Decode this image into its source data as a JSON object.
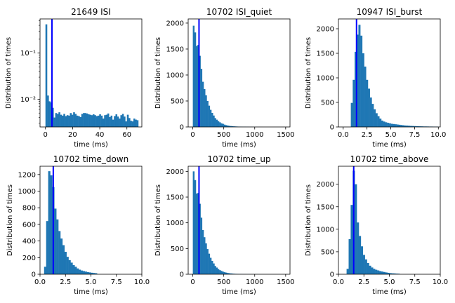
{
  "figure": {
    "colors": {
      "bar": "#1f77b4",
      "marker_line": "#0000ff",
      "axes": "#000000"
    }
  },
  "chart_data": [
    {
      "type": "bar",
      "title": "21649 ISI",
      "xlabel": "time (ms)",
      "ylabel": "Distribution of times",
      "yscale": "log",
      "xlim": [
        -4,
        71
      ],
      "ylim": [
        0.0025,
        0.55
      ],
      "xticks": [
        0,
        20,
        40,
        60
      ],
      "xtick_labels": [
        "0",
        "20",
        "40",
        "60"
      ],
      "yticks": [
        0.01,
        0.1
      ],
      "ytick_labels": [
        "10⁻²",
        "10⁻¹"
      ],
      "bin_start": 0,
      "bin_width": 1.2,
      "values": [
        0.42,
        0.012,
        0.009,
        0.0085,
        0.0065,
        0.004,
        0.005,
        0.0048,
        0.0052,
        0.0046,
        0.0044,
        0.0048,
        0.0043,
        0.0045,
        0.0044,
        0.005,
        0.0046,
        0.0052,
        0.0048,
        0.0044,
        0.0043,
        0.0041,
        0.0048,
        0.005,
        0.005,
        0.0049,
        0.0047,
        0.0046,
        0.0045,
        0.0047,
        0.0045,
        0.0043,
        0.0044,
        0.0047,
        0.0044,
        0.0038,
        0.0045,
        0.0046,
        0.0049,
        0.0041,
        0.0044,
        0.0036,
        0.0043,
        0.0047,
        0.0042,
        0.0038,
        0.0045,
        0.0048,
        0.0042,
        0.0033,
        0.0046,
        0.0039,
        0.0034,
        0.0033,
        0.0038,
        0.0036,
        0.0035
      ],
      "vline": 4.8
    },
    {
      "type": "bar",
      "title": "10702 ISI_quiet",
      "xlabel": "time (ms)",
      "ylabel": "Distribution of times",
      "yscale": "linear",
      "xlim": [
        -75,
        1570
      ],
      "ylim": [
        0,
        2080
      ],
      "xticks": [
        0,
        500,
        1000,
        1500
      ],
      "xtick_labels": [
        "0",
        "500",
        "1000",
        "1500"
      ],
      "yticks": [
        0,
        500,
        1000,
        1500,
        2000
      ],
      "ytick_labels": [
        "0",
        "500",
        "1000",
        "1500",
        "2000"
      ],
      "bin_start": 0,
      "bin_width": 25,
      "values": [
        1950,
        1820,
        1560,
        1580,
        1370,
        1120,
        870,
        730,
        610,
        500,
        410,
        330,
        270,
        220,
        170,
        140,
        110,
        90,
        70,
        60,
        45,
        35,
        28,
        22,
        18,
        15,
        12,
        10,
        8,
        7,
        6,
        5,
        4,
        4,
        3,
        3,
        2,
        2,
        2,
        1,
        1,
        1,
        1,
        1,
        1,
        0,
        0,
        0,
        0,
        0,
        0,
        0,
        0,
        0,
        0,
        0,
        0,
        0,
        0,
        0
      ],
      "vline": 100
    },
    {
      "type": "bar",
      "title": "10947 ISI_burst",
      "xlabel": "time (ms)",
      "ylabel": "Distribution of times",
      "yscale": "linear",
      "xlim": [
        -0.5,
        10.2
      ],
      "ylim": [
        0,
        2200
      ],
      "xticks": [
        0.0,
        2.5,
        5.0,
        7.5,
        10.0
      ],
      "xtick_labels": [
        "0.0",
        "2.5",
        "5.0",
        "7.5",
        "10.0"
      ],
      "yticks": [
        0,
        500,
        1000,
        1500,
        2000
      ],
      "ytick_labels": [
        "0",
        "500",
        "1000",
        "1500",
        "2000"
      ],
      "bin_start": 0.4,
      "bin_width": 0.2,
      "values": [
        0,
        0,
        490,
        960,
        1530,
        1880,
        2080,
        1860,
        1500,
        1230,
        960,
        780,
        600,
        470,
        360,
        280,
        220,
        170,
        130,
        110,
        95,
        85,
        75,
        65,
        60,
        55,
        50,
        45,
        40,
        35,
        30,
        28,
        25,
        22,
        20,
        18,
        16,
        14,
        13,
        12,
        10,
        10,
        9,
        8,
        8,
        7,
        6,
        6
      ],
      "vline": 1.4
    },
    {
      "type": "bar",
      "title": "10702 time_down",
      "xlabel": "time (ms)",
      "ylabel": "Distribution of times",
      "yscale": "linear",
      "xlim": [
        0,
        10
      ],
      "ylim": [
        0,
        1300
      ],
      "xticks": [
        0.0,
        2.5,
        5.0,
        7.5,
        10.0
      ],
      "xtick_labels": [
        "0.0",
        "2.5",
        "5.0",
        "7.5",
        "10.0"
      ],
      "yticks": [
        0,
        200,
        400,
        600,
        800,
        1000,
        1200
      ],
      "ytick_labels": [
        "0",
        "200",
        "400",
        "600",
        "800",
        "1000",
        "1200"
      ],
      "bin_start": 0.4,
      "bin_width": 0.2,
      "values": [
        90,
        640,
        1240,
        1190,
        1050,
        790,
        660,
        520,
        430,
        350,
        270,
        210,
        170,
        140,
        110,
        90,
        70,
        55,
        45,
        38,
        32,
        26,
        22,
        18,
        15,
        12
      ],
      "vline": 1.3
    },
    {
      "type": "bar",
      "title": "10702 time_up",
      "xlabel": "time (ms)",
      "ylabel": "Distribution of times",
      "yscale": "linear",
      "xlim": [
        -75,
        1570
      ],
      "ylim": [
        0,
        2100
      ],
      "xticks": [
        0,
        500,
        1000,
        1500
      ],
      "xtick_labels": [
        "0",
        "500",
        "1000",
        "1500"
      ],
      "yticks": [
        0,
        500,
        1000,
        1500,
        2000
      ],
      "ytick_labels": [
        "0",
        "500",
        "1000",
        "1500",
        "2000"
      ],
      "bin_start": 0,
      "bin_width": 25,
      "values": [
        2000,
        1830,
        1570,
        1580,
        1370,
        1100,
        860,
        720,
        600,
        490,
        400,
        320,
        260,
        210,
        160,
        130,
        100,
        80,
        65,
        50,
        40,
        32,
        25,
        20,
        16,
        13,
        10,
        8,
        7,
        6,
        5,
        4,
        3,
        3,
        2,
        2,
        2,
        1,
        1,
        1,
        1,
        1,
        0,
        0,
        0,
        0,
        0,
        0,
        0,
        0,
        0,
        0,
        0,
        0,
        0,
        0,
        0,
        0,
        0,
        0
      ],
      "vline": 100
    },
    {
      "type": "bar",
      "title": "10702 time_above",
      "xlabel": "time (ms)",
      "ylabel": "Distribution of times",
      "yscale": "linear",
      "xlim": [
        0,
        10
      ],
      "ylim": [
        0,
        2400
      ],
      "xticks": [
        0.0,
        2.5,
        5.0,
        7.5,
        10.0
      ],
      "xtick_labels": [
        "0.0",
        "2.5",
        "5.0",
        "7.5",
        "10.0"
      ],
      "yticks": [
        0,
        500,
        1000,
        1500,
        2000
      ],
      "ytick_labels": [
        "0",
        "500",
        "1000",
        "1500",
        "2000"
      ],
      "bin_start": 0.8,
      "bin_width": 0.2,
      "values": [
        120,
        780,
        1540,
        2300,
        2000,
        1150,
        850,
        620,
        430,
        330,
        250,
        190,
        150,
        120,
        100,
        85,
        70,
        60,
        50,
        40,
        32,
        25,
        20,
        18,
        14,
        12
      ],
      "vline": 1.5
    }
  ]
}
